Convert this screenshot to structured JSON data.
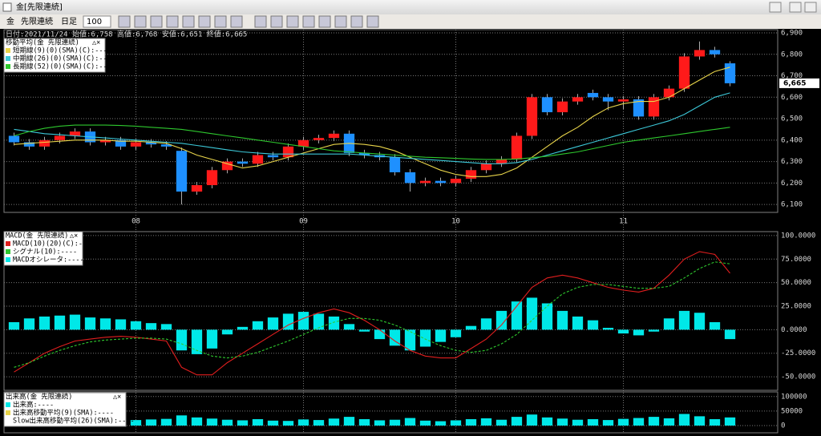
{
  "window": {
    "title": "金[先限連続]",
    "toolbar": {
      "symbol": "金",
      "contract": "先限連続",
      "period": "日足",
      "count": 100
    }
  },
  "chart_data": [
    {
      "type": "candlestick",
      "info": "日付:2021/11/24 始値:6,758 高値:6,768 安値:6,651 終値:6,665",
      "title": "移動平均(金 先限連続)",
      "categories": [
        null,
        null,
        null,
        null,
        null,
        null,
        null,
        null,
        "08",
        null,
        null,
        null,
        null,
        null,
        null,
        null,
        null,
        null,
        null,
        "09",
        null,
        null,
        null,
        null,
        null,
        null,
        null,
        null,
        null,
        "10",
        null,
        null,
        null,
        null,
        null,
        null,
        null,
        null,
        null,
        null,
        "11",
        null,
        null,
        null,
        null,
        null,
        null,
        null
      ],
      "open": [
        6420,
        6390,
        6370,
        6400,
        6420,
        6440,
        6390,
        6400,
        6370,
        6390,
        6380,
        6350,
        6160,
        6190,
        6260,
        6300,
        6290,
        6330,
        6320,
        6370,
        6400,
        6410,
        6430,
        6340,
        6330,
        6320,
        6250,
        6200,
        6210,
        6200,
        6220,
        6260,
        6290,
        6310,
        6420,
        6600,
        6530,
        6580,
        6620,
        6600,
        6580,
        6590,
        6510,
        6600,
        6640,
        6790,
        6820,
        6758
      ],
      "high": [
        6435,
        6405,
        6415,
        6435,
        6455,
        6455,
        6415,
        6415,
        6405,
        6405,
        6395,
        6365,
        6205,
        6275,
        6315,
        6315,
        6345,
        6345,
        6385,
        6415,
        6425,
        6445,
        6445,
        6355,
        6345,
        6335,
        6265,
        6225,
        6225,
        6235,
        6275,
        6305,
        6325,
        6435,
        6615,
        6615,
        6595,
        6615,
        6635,
        6615,
        6605,
        6605,
        6615,
        6655,
        6805,
        6860,
        6835,
        6768
      ],
      "low": [
        6375,
        6355,
        6355,
        6385,
        6405,
        6375,
        6375,
        6355,
        6355,
        6365,
        6355,
        6100,
        6145,
        6175,
        6245,
        6275,
        6275,
        6305,
        6305,
        6355,
        6385,
        6395,
        6325,
        6315,
        6305,
        6235,
        6160,
        6185,
        6185,
        6185,
        6205,
        6245,
        6275,
        6295,
        6405,
        6515,
        6515,
        6565,
        6585,
        6540,
        6545,
        6495,
        6495,
        6585,
        6625,
        6775,
        6785,
        6651
      ],
      "close": [
        6390,
        6370,
        6400,
        6420,
        6440,
        6390,
        6400,
        6370,
        6390,
        6380,
        6370,
        6160,
        6190,
        6260,
        6300,
        6290,
        6330,
        6320,
        6370,
        6400,
        6410,
        6430,
        6340,
        6330,
        6320,
        6250,
        6200,
        6210,
        6200,
        6220,
        6260,
        6290,
        6310,
        6420,
        6600,
        6530,
        6580,
        6600,
        6600,
        6580,
        6590,
        6510,
        6600,
        6640,
        6790,
        6820,
        6800,
        6665
      ],
      "up_color": "#ff1a1a",
      "down_color": "#1e90ff",
      "series": [
        {
          "name": "短期線(9)(0)(SMA)(C):----",
          "color": "#e8d44a",
          "values": [
            6380,
            6385,
            6390,
            6395,
            6400,
            6400,
            6400,
            6395,
            6395,
            6390,
            6385,
            6360,
            6330,
            6310,
            6290,
            6270,
            6280,
            6300,
            6320,
            6340,
            6360,
            6380,
            6385,
            6380,
            6370,
            6350,
            6320,
            6290,
            6260,
            6240,
            6230,
            6230,
            6240,
            6270,
            6320,
            6370,
            6420,
            6460,
            6510,
            6550,
            6570,
            6580,
            6580,
            6600,
            6640,
            6680,
            6720,
            6740
          ]
        },
        {
          "name": "中期線(26)(0)(SMA)(C):----",
          "color": "#3cc8d8",
          "values": [
            6450,
            6440,
            6430,
            6425,
            6420,
            6415,
            6410,
            6405,
            6400,
            6395,
            6390,
            6385,
            6375,
            6365,
            6355,
            6345,
            6340,
            6335,
            6335,
            6335,
            6335,
            6335,
            6335,
            6330,
            6325,
            6320,
            6315,
            6310,
            6305,
            6300,
            6295,
            6290,
            6290,
            6295,
            6310,
            6330,
            6350,
            6370,
            6390,
            6410,
            6430,
            6450,
            6470,
            6490,
            6520,
            6560,
            6600,
            6620
          ]
        },
        {
          "name": "長期線(52)(0)(SMA)(C):----",
          "color": "#2ec82e",
          "values": [
            6420,
            6440,
            6455,
            6465,
            6470,
            6470,
            6470,
            6468,
            6465,
            6460,
            6455,
            6450,
            6440,
            6430,
            6420,
            6410,
            6400,
            6390,
            6380,
            6370,
            6360,
            6350,
            6345,
            6340,
            6335,
            6330,
            6325,
            6320,
            6318,
            6315,
            6312,
            6310,
            6310,
            6312,
            6318,
            6325,
            6335,
            6345,
            6360,
            6375,
            6390,
            6400,
            6410,
            6420,
            6430,
            6440,
            6450,
            6460
          ]
        }
      ],
      "last_price": {
        "value": 6665,
        "label": "6,665"
      },
      "ylim": [
        6063,
        6915
      ],
      "yticks": [
        {
          "value": 6100,
          "label": "6,100"
        },
        {
          "value": 6200,
          "label": "6,200"
        },
        {
          "value": 6300,
          "label": "6,300"
        },
        {
          "value": 6400,
          "label": "6,400"
        },
        {
          "value": 6500,
          "label": "6,500"
        },
        {
          "value": 6600,
          "label": "6,600"
        },
        {
          "value": 6700,
          "label": "6,700"
        },
        {
          "value": 6800,
          "label": "6,800"
        },
        {
          "value": 6900,
          "label": "6,900"
        }
      ],
      "grid": true
    },
    {
      "type": "macd",
      "title": "MACD(金 先限連続)",
      "series": [
        {
          "name": "MACD(10)(20)(C):----",
          "color": "#e01e1e",
          "kind": "line",
          "values": [
            -45,
            -35,
            -25,
            -18,
            -12,
            -10,
            -8,
            -7,
            -8,
            -10,
            -12,
            -40,
            -48,
            -48,
            -35,
            -25,
            -15,
            -5,
            5,
            12,
            18,
            22,
            18,
            10,
            0,
            -12,
            -22,
            -28,
            -30,
            -30,
            -20,
            -10,
            5,
            25,
            45,
            55,
            58,
            55,
            50,
            45,
            42,
            40,
            44,
            58,
            75,
            83,
            80,
            60
          ]
        },
        {
          "name": "シグナル(10):----",
          "color": "#2ec82e",
          "kind": "dashed",
          "values": [
            -40,
            -35,
            -28,
            -22,
            -17,
            -13,
            -11,
            -10,
            -9,
            -9,
            -10,
            -15,
            -22,
            -28,
            -30,
            -28,
            -24,
            -18,
            -12,
            -5,
            2,
            8,
            12,
            12,
            10,
            5,
            -2,
            -10,
            -17,
            -22,
            -24,
            -22,
            -15,
            -5,
            10,
            25,
            38,
            45,
            48,
            48,
            46,
            44,
            44,
            46,
            55,
            65,
            72,
            70
          ]
        },
        {
          "name": "MACDオシレータ:----",
          "color": "#00e8e8",
          "kind": "bar",
          "values": [
            8,
            12,
            14,
            15,
            16,
            13,
            12,
            11,
            9,
            7,
            6,
            -22,
            -26,
            -20,
            -5,
            3,
            9,
            13,
            17,
            19,
            17,
            14,
            6,
            -2,
            -10,
            -17,
            -22,
            -18,
            -13,
            -8,
            4,
            12,
            20,
            30,
            34,
            28,
            20,
            14,
            10,
            2,
            -4,
            -6,
            -2,
            12,
            20,
            18,
            8,
            -10
          ]
        }
      ],
      "ylim": [
        -64.4,
        104.2
      ],
      "yticks": [
        {
          "value": -50,
          "label": "-50.0000"
        },
        {
          "value": -25,
          "label": "-25.0000"
        },
        {
          "value": 0,
          "label": "0.0000"
        },
        {
          "value": 25,
          "label": "25.0000"
        },
        {
          "value": 50,
          "label": "50.0000"
        },
        {
          "value": 75,
          "label": "75.0000"
        },
        {
          "value": 100,
          "label": "100.0000"
        }
      ],
      "grid": true
    },
    {
      "type": "bar",
      "title": "出来高(金 先限連続)",
      "series": [
        {
          "name": "出来高:----",
          "color": "#00e8e8",
          "values": [
            20000,
            15000,
            18000,
            22000,
            17000,
            25000,
            16000,
            14000,
            19000,
            21000,
            23000,
            35000,
            28000,
            24000,
            20000,
            18000,
            22000,
            17000,
            16000,
            21000,
            19000,
            24000,
            30000,
            22000,
            18000,
            20000,
            26000,
            17000,
            15000,
            18000,
            22000,
            25000,
            20000,
            30000,
            38000,
            28000,
            24000,
            20000,
            22000,
            19000,
            23000,
            26000,
            30000,
            25000,
            40000,
            32000,
            22000,
            28000
          ]
        },
        {
          "name": "出来高移動平均(9)(SMA):----",
          "color": "#e8d44a"
        },
        {
          "name": "Slow出来高移動平均(26)(SMA):----",
          "color": "#ffffff"
        }
      ],
      "ylim": [
        -25000,
        116000
      ],
      "yticks": [
        0,
        50000,
        100000
      ],
      "grid": true
    }
  ]
}
